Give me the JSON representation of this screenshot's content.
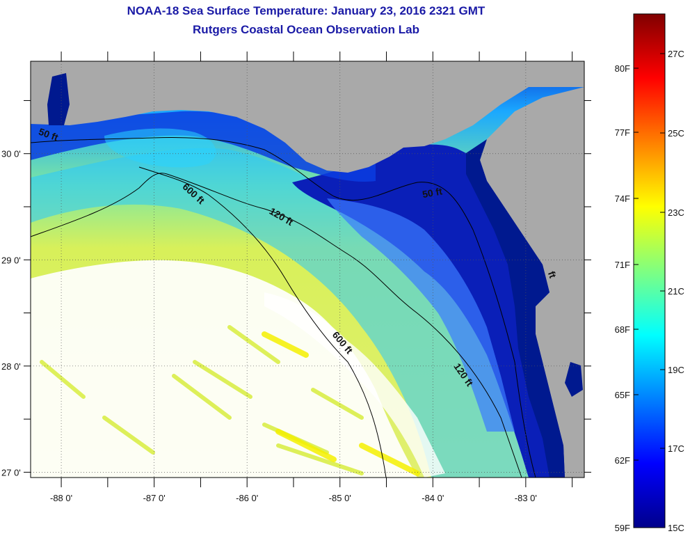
{
  "title_line1": "NOAA-18 Sea Surface Temperature:  January 23, 2016 2321 GMT",
  "title_line2": "Rutgers Coastal Ocean Observation Lab",
  "map": {
    "lon_range": [
      -88.33,
      -82.37
    ],
    "lat_range": [
      26.95,
      30.87
    ],
    "lon_ticks": [
      {
        "value": -88,
        "label": "-88 0'"
      },
      {
        "value": -87,
        "label": "-87 0'"
      },
      {
        "value": -86,
        "label": "-86 0'"
      },
      {
        "value": -85,
        "label": "-85 0'"
      },
      {
        "value": -84,
        "label": "-84 0'"
      },
      {
        "value": -83,
        "label": "-83 0'"
      }
    ],
    "lat_ticks": [
      {
        "value": 30,
        "label": "30 0'"
      },
      {
        "value": 29,
        "label": "29 0'"
      },
      {
        "value": 28,
        "label": "28 0'"
      },
      {
        "value": 27,
        "label": "27 0'"
      }
    ],
    "depth_contour_labels": [
      {
        "text": "50 ft",
        "lon": -88.15,
        "lat": 30.15,
        "rotate": 20
      },
      {
        "text": "600 ft",
        "lon": -86.6,
        "lat": 29.6,
        "rotate": 42
      },
      {
        "text": "120 ft",
        "lon": -85.65,
        "lat": 29.38,
        "rotate": 30
      },
      {
        "text": "50 ft",
        "lon": -84.0,
        "lat": 29.6,
        "rotate": -10
      },
      {
        "text": "600 ft",
        "lon": -85.0,
        "lat": 28.2,
        "rotate": 50
      },
      {
        "text": "120 ft",
        "lon": -83.7,
        "lat": 27.9,
        "rotate": 55
      },
      {
        "text": "ft",
        "lon": -82.75,
        "lat": 28.85,
        "rotate": 70
      }
    ],
    "colors": {
      "land": "#a9a9a9",
      "cloud": "#ffffff",
      "shelf_cold": "#0a1fb8",
      "nearshore_cold": "#00198f"
    }
  },
  "colorbar": {
    "colors": [
      "#00008b",
      "#0000ff",
      "#0080ff",
      "#00ffff",
      "#80ff80",
      "#ffff00",
      "#ff8000",
      "#ff0000",
      "#800000"
    ],
    "fahrenheit_labels": [
      "80F",
      "77F",
      "74F",
      "71F",
      "68F",
      "65F",
      "62F",
      "59F"
    ],
    "celsius_labels": [
      "27C",
      "25C",
      "23C",
      "21C",
      "19C",
      "17C",
      "15C"
    ]
  }
}
